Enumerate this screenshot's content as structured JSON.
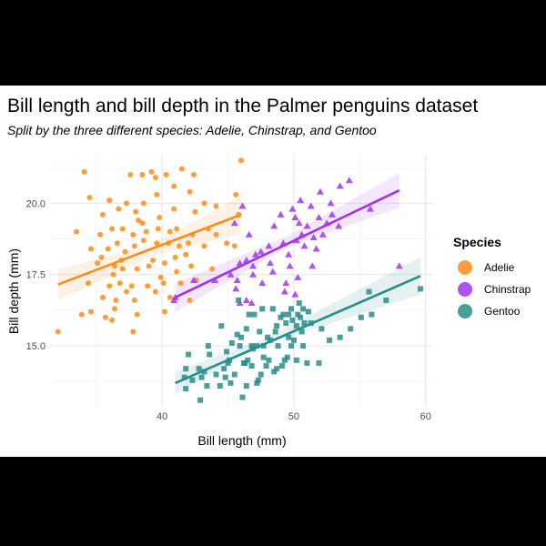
{
  "chart_data": {
    "type": "scatter",
    "title": "Bill length and bill depth in the Palmer penguins dataset",
    "subtitle": "Split by the three different species: Adelie, Chinstrap, and Gentoo",
    "xlabel": "Bill length (mm)",
    "ylabel": "Bill depth (mm)",
    "xlim": [
      31.5,
      60.5
    ],
    "ylim": [
      12.9,
      21.7
    ],
    "xticks": [
      40,
      50,
      60
    ],
    "yticks": [
      15.0,
      17.5,
      20.0
    ],
    "xtick_labels": [
      "40",
      "50",
      "60"
    ],
    "ytick_labels": [
      "15.0",
      "17.5",
      "20.0"
    ],
    "grid": true,
    "legend": {
      "title": "Species",
      "position": "right",
      "entries": [
        "Adelie",
        "Chinstrap",
        "Gentoo"
      ]
    },
    "series": [
      {
        "name": "Adelie",
        "marker": "circle",
        "color": "#FF8C1A",
        "trend": {
          "x": [
            32.1,
            46.0
          ],
          "y": [
            17.15,
            19.6
          ]
        },
        "band": {
          "x": [
            32.1,
            39.0,
            46.0
          ],
          "lo": [
            16.6,
            18.1,
            18.95
          ],
          "hi": [
            17.7,
            18.5,
            20.25
          ]
        },
        "points": [
          [
            34.1,
            21.1
          ],
          [
            37.6,
            21.0
          ],
          [
            38.5,
            21.0
          ],
          [
            39.2,
            21.1
          ],
          [
            39.5,
            20.9
          ],
          [
            40.3,
            21.0
          ],
          [
            41.5,
            21.2
          ],
          [
            42.4,
            21.0
          ],
          [
            42.1,
            20.4
          ],
          [
            40.9,
            20.6
          ],
          [
            39.6,
            20.3
          ],
          [
            38.6,
            20.0
          ],
          [
            37.3,
            20.0
          ],
          [
            36.0,
            20.1
          ],
          [
            34.5,
            20.2
          ],
          [
            38.0,
            19.7
          ],
          [
            36.7,
            19.8
          ],
          [
            35.5,
            19.6
          ],
          [
            38.2,
            19.4
          ],
          [
            39.8,
            19.5
          ],
          [
            40.9,
            19.8
          ],
          [
            42.5,
            19.7
          ],
          [
            44.1,
            19.9
          ],
          [
            45.8,
            19.6
          ],
          [
            45.6,
            20.3
          ],
          [
            46.0,
            21.5
          ],
          [
            43.2,
            20.0
          ],
          [
            33.5,
            19.0
          ],
          [
            34.6,
            18.4
          ],
          [
            35.3,
            18.9
          ],
          [
            36.2,
            19.1
          ],
          [
            37.0,
            19.1
          ],
          [
            37.8,
            18.9
          ],
          [
            38.8,
            19.0
          ],
          [
            39.7,
            19.1
          ],
          [
            40.6,
            19.0
          ],
          [
            41.1,
            19.1
          ],
          [
            42.3,
            18.9
          ],
          [
            43.5,
            19.1
          ],
          [
            44.1,
            18.9
          ],
          [
            35.9,
            18.4
          ],
          [
            36.6,
            18.6
          ],
          [
            37.2,
            18.3
          ],
          [
            37.9,
            18.5
          ],
          [
            38.6,
            18.7
          ],
          [
            39.6,
            18.6
          ],
          [
            40.5,
            18.6
          ],
          [
            41.3,
            18.5
          ],
          [
            42.0,
            18.6
          ],
          [
            43.2,
            18.5
          ],
          [
            44.9,
            18.6
          ],
          [
            45.5,
            18.5
          ],
          [
            35.1,
            17.9
          ],
          [
            36.4,
            17.8
          ],
          [
            37.0,
            17.7
          ],
          [
            38.1,
            17.7
          ],
          [
            39.0,
            17.8
          ],
          [
            40.2,
            17.9
          ],
          [
            41.1,
            17.6
          ],
          [
            42.2,
            17.8
          ],
          [
            43.8,
            17.7
          ],
          [
            34.4,
            17.2
          ],
          [
            36.0,
            17.1
          ],
          [
            36.8,
            17.2
          ],
          [
            37.7,
            17.1
          ],
          [
            38.9,
            17.1
          ],
          [
            40.1,
            17.2
          ],
          [
            41.4,
            17.2
          ],
          [
            42.6,
            17.3
          ],
          [
            35.5,
            16.7
          ],
          [
            36.5,
            16.6
          ],
          [
            37.9,
            16.6
          ],
          [
            39.5,
            16.9
          ],
          [
            40.6,
            16.7
          ],
          [
            42.1,
            16.6
          ],
          [
            34.6,
            16.2
          ],
          [
            36.4,
            16.3
          ],
          [
            38.1,
            16.1
          ],
          [
            40.2,
            16.2
          ],
          [
            35.7,
            16.0
          ],
          [
            36.2,
            15.9
          ],
          [
            37.8,
            15.5
          ],
          [
            33.9,
            16.1
          ],
          [
            32.1,
            15.5
          ],
          [
            35.4,
            18.1
          ],
          [
            39.3,
            18.0
          ],
          [
            41.0,
            18.1
          ],
          [
            38.5,
            19.3
          ],
          [
            36.9,
            18.0
          ],
          [
            39.9,
            17.4
          ],
          [
            36.3,
            17.5
          ],
          [
            37.3,
            16.9
          ],
          [
            41.8,
            18.2
          ]
        ]
      },
      {
        "name": "Chinstrap",
        "marker": "triangle",
        "color": "#A034F0",
        "trend": {
          "x": [
            41.0,
            58.0
          ],
          "y": [
            16.7,
            20.45
          ]
        },
        "band": {
          "x": [
            41.0,
            49.5,
            58.0
          ],
          "lo": [
            16.2,
            18.45,
            19.85
          ],
          "hi": [
            17.2,
            18.85,
            21.05
          ]
        },
        "points": [
          [
            46.1,
            19.9
          ],
          [
            46.6,
            18.9
          ],
          [
            45.5,
            19.3
          ],
          [
            47.5,
            18.3
          ],
          [
            48.5,
            19.2
          ],
          [
            49.0,
            19.6
          ],
          [
            49.9,
            19.8
          ],
          [
            50.1,
            19.5
          ],
          [
            50.5,
            20.1
          ],
          [
            51.3,
            19.9
          ],
          [
            52.0,
            20.4
          ],
          [
            51.0,
            19.2
          ],
          [
            52.5,
            19.3
          ],
          [
            53.5,
            20.6
          ],
          [
            54.2,
            20.8
          ],
          [
            52.8,
            20.0
          ],
          [
            49.6,
            18.2
          ],
          [
            50.2,
            18.7
          ],
          [
            51.5,
            18.8
          ],
          [
            50.6,
            18.9
          ],
          [
            49.2,
            18.6
          ],
          [
            48.1,
            18.5
          ],
          [
            47.1,
            18.2
          ],
          [
            46.4,
            18.0
          ],
          [
            45.9,
            17.9
          ],
          [
            45.2,
            17.5
          ],
          [
            46.9,
            17.5
          ],
          [
            48.4,
            17.6
          ],
          [
            49.7,
            17.8
          ],
          [
            50.8,
            18.5
          ],
          [
            51.7,
            18.4
          ],
          [
            52.2,
            18.9
          ],
          [
            53.4,
            19.2
          ],
          [
            55.8,
            19.8
          ],
          [
            50.3,
            17.4
          ],
          [
            49.3,
            16.9
          ],
          [
            47.6,
            17.2
          ],
          [
            46.8,
            16.5
          ],
          [
            45.7,
            17.3
          ],
          [
            46.4,
            16.6
          ],
          [
            44.0,
            17.3
          ],
          [
            42.4,
            17.3
          ],
          [
            41.0,
            16.7
          ],
          [
            40.9,
            16.6
          ],
          [
            50.1,
            16.8
          ],
          [
            49.4,
            17.2
          ],
          [
            48.2,
            17.9
          ],
          [
            51.4,
            17.8
          ],
          [
            58.0,
            17.8
          ],
          [
            52.9,
            19.6
          ],
          [
            45.9,
            16.5
          ],
          [
            45.6,
            17.0
          ],
          [
            50.4,
            19.3
          ],
          [
            51.9,
            19.5
          ],
          [
            46.9,
            17.8
          ]
        ]
      },
      {
        "name": "Gentoo",
        "marker": "square",
        "color": "#2A8C8C",
        "trend": {
          "x": [
            41.0,
            59.6
          ],
          "y": [
            13.7,
            17.45
          ]
        },
        "band": {
          "x": [
            41.0,
            47.8,
            59.6
          ],
          "lo": [
            13.3,
            15.05,
            16.8
          ],
          "hi": [
            14.1,
            15.25,
            18.1
          ]
        },
        "points": [
          [
            42.0,
            14.7
          ],
          [
            43.6,
            14.7
          ],
          [
            44.9,
            14.8
          ],
          [
            45.1,
            14.5
          ],
          [
            45.5,
            14.0
          ],
          [
            45.2,
            13.7
          ],
          [
            44.4,
            13.6
          ],
          [
            42.9,
            13.1
          ],
          [
            43.4,
            13.6
          ],
          [
            41.7,
            13.9
          ],
          [
            46.1,
            13.2
          ],
          [
            46.4,
            13.6
          ],
          [
            47.2,
            13.7
          ],
          [
            47.3,
            13.8
          ],
          [
            46.8,
            14.3
          ],
          [
            46.5,
            14.5
          ],
          [
            46.2,
            14.4
          ],
          [
            47.5,
            14.0
          ],
          [
            48.1,
            14.5
          ],
          [
            48.5,
            14.1
          ],
          [
            49.1,
            14.3
          ],
          [
            48.7,
            14.2
          ],
          [
            49.3,
            14.5
          ],
          [
            49.6,
            15.3
          ],
          [
            50.0,
            15.2
          ],
          [
            49.8,
            15.0
          ],
          [
            48.8,
            15.0
          ],
          [
            47.7,
            15.0
          ],
          [
            47.2,
            15.0
          ],
          [
            46.8,
            15.0
          ],
          [
            46.0,
            15.3
          ],
          [
            45.3,
            15.1
          ],
          [
            44.5,
            15.7
          ],
          [
            43.5,
            15.0
          ],
          [
            42.8,
            14.2
          ],
          [
            42.3,
            13.8
          ],
          [
            41.8,
            14.2
          ],
          [
            45.7,
            15.4
          ],
          [
            46.4,
            15.6
          ],
          [
            47.4,
            15.5
          ],
          [
            48.2,
            15.2
          ],
          [
            48.7,
            15.7
          ],
          [
            49.4,
            15.8
          ],
          [
            49.9,
            15.9
          ],
          [
            50.2,
            15.7
          ],
          [
            50.6,
            15.5
          ],
          [
            50.8,
            15.8
          ],
          [
            51.1,
            16.2
          ],
          [
            50.5,
            16.0
          ],
          [
            49.6,
            16.1
          ],
          [
            49.2,
            16.1
          ],
          [
            48.4,
            16.3
          ],
          [
            47.6,
            16.3
          ],
          [
            46.6,
            16.1
          ],
          [
            45.8,
            16.6
          ],
          [
            49.8,
            16.3
          ],
          [
            50.3,
            16.1
          ],
          [
            50.7,
            16.3
          ],
          [
            51.3,
            15.8
          ],
          [
            52.1,
            15.6
          ],
          [
            52.7,
            15.2
          ],
          [
            53.5,
            15.3
          ],
          [
            54.3,
            15.6
          ],
          [
            55.1,
            16.0
          ],
          [
            55.9,
            16.1
          ],
          [
            57.0,
            16.6
          ],
          [
            55.7,
            16.9
          ],
          [
            59.6,
            17.0
          ],
          [
            49.5,
            14.6
          ],
          [
            50.2,
            14.5
          ],
          [
            51.0,
            14.4
          ],
          [
            51.9,
            14.4
          ],
          [
            44.1,
            14.0
          ],
          [
            43.2,
            14.1
          ],
          [
            45.0,
            14.4
          ],
          [
            46.9,
            14.9
          ],
          [
            48.0,
            15.3
          ],
          [
            47.0,
            16.1
          ],
          [
            44.7,
            14.2
          ],
          [
            46.3,
            14.4
          ],
          [
            47.9,
            14.3
          ],
          [
            50.7,
            15.0
          ],
          [
            49.0,
            16.0
          ],
          [
            50.4,
            16.5
          ],
          [
            48.6,
            15.5
          ],
          [
            45.9,
            15.0
          ],
          [
            44.8,
            13.9
          ],
          [
            47.7,
            14.6
          ],
          [
            41.8,
            13.5
          ],
          [
            43.0,
            13.9
          ]
        ]
      }
    ]
  }
}
